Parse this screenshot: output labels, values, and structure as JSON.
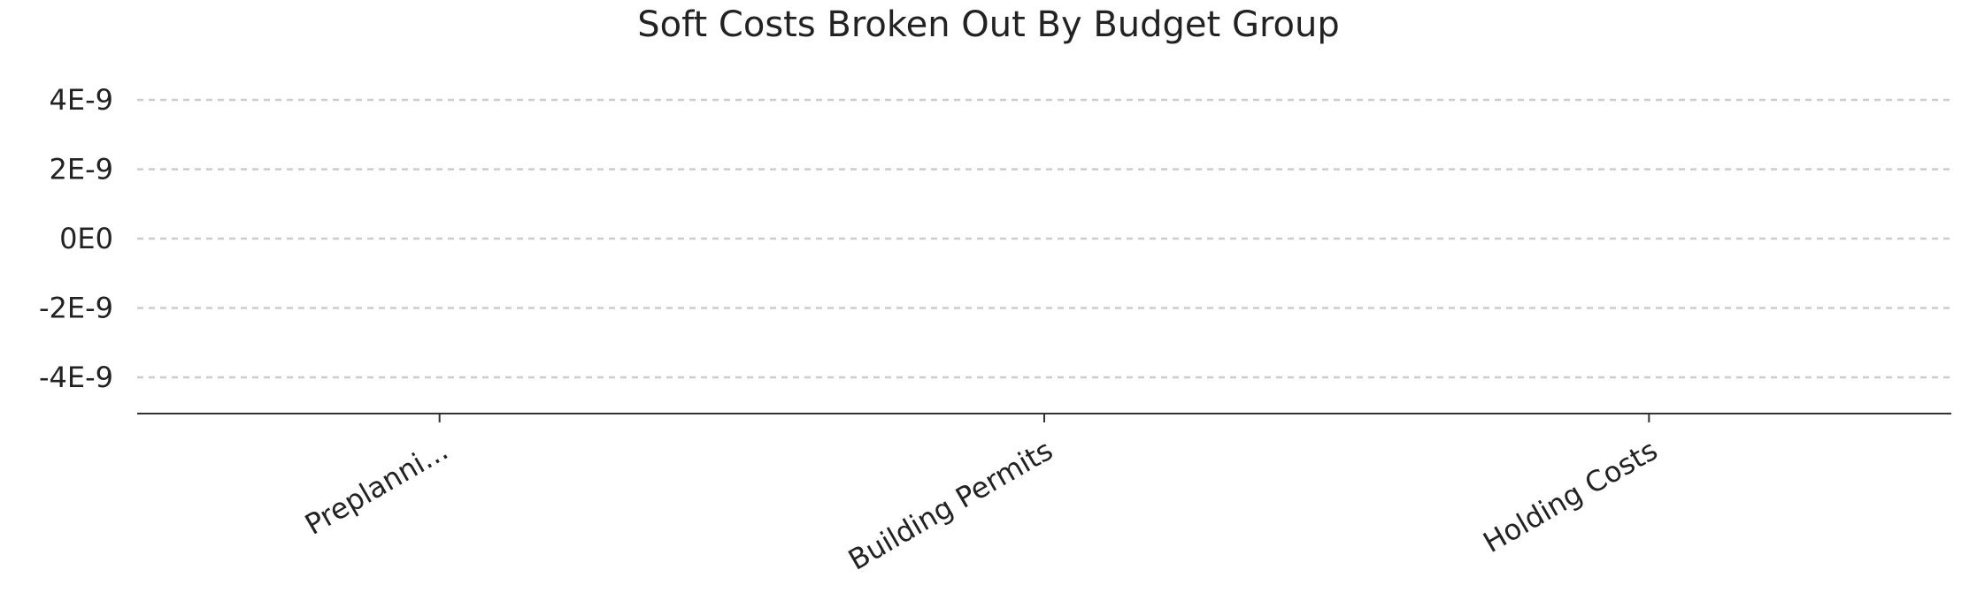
{
  "chart_data": {
    "type": "bar",
    "title": "Soft Costs Broken Out By Budget Group",
    "xlabel": "",
    "ylabel": "",
    "categories": [
      "Preplanni...",
      "Building Permits",
      "Holding Costs"
    ],
    "values": [
      0,
      0,
      0
    ],
    "ylim": [
      -5e-09,
      5e-09
    ],
    "y_ticks": [
      4e-09,
      2e-09,
      0,
      -2e-09,
      -4e-09
    ],
    "y_tick_labels": [
      "4E-9",
      "2E-9",
      "0E0",
      "-2E-9",
      "-4E-9"
    ],
    "grid": true,
    "grid_style": "dashed-horizontal",
    "legend": "none",
    "colors": {
      "text": "#222222",
      "grid": "#cccccc",
      "axis": "#333333",
      "bar": "#4e79a7"
    }
  }
}
